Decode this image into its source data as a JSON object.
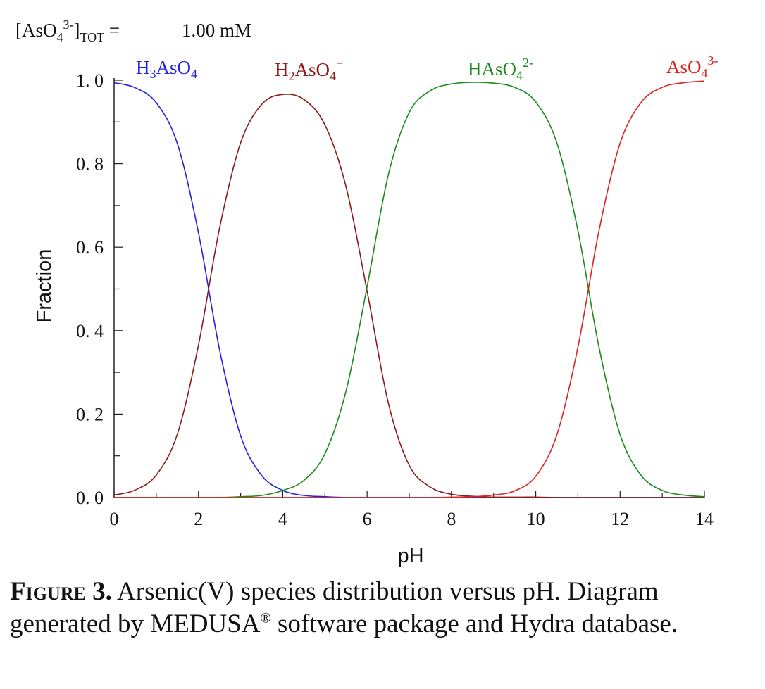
{
  "header": {
    "total_label_main": "[AsO",
    "total_label_sub4": "4",
    "total_label_sup": "3-",
    "total_label_close": "]",
    "total_label_sub": "TOT",
    "total_label_eq": " =",
    "total_value": "1.00 mM"
  },
  "chart_data": {
    "type": "line",
    "xlabel": "pH",
    "ylabel": "Fraction",
    "xlim": [
      0,
      14
    ],
    "ylim": [
      0,
      1.0
    ],
    "xticks": [
      0,
      2,
      4,
      6,
      8,
      10,
      12,
      14
    ],
    "xtick_labels": [
      "0",
      "2",
      "4",
      "6",
      "8",
      "10",
      "12",
      "14"
    ],
    "yticks": [
      0,
      0.2,
      0.4,
      0.6,
      0.8,
      1.0
    ],
    "ytick_labels": [
      "0. 0",
      "0. 2",
      "0. 4",
      "0. 6",
      "0. 8",
      "1. 0"
    ],
    "grid": false,
    "pKa": [
      2.24,
      6.76,
      11.6
    ],
    "x": [
      0,
      0.5,
      1,
      1.5,
      2,
      2.5,
      3,
      3.5,
      4,
      4.5,
      5,
      5.5,
      6,
      6.5,
      7,
      7.5,
      8,
      8.5,
      9,
      9.5,
      10,
      10.5,
      11,
      11.5,
      12,
      12.5,
      13,
      13.5,
      14
    ],
    "series": [
      {
        "label_main": "H",
        "label_sub1": "3",
        "label_mid": "AsO",
        "label_sub2": "4",
        "label_sup": "",
        "color": "#2222dd",
        "values": [
          0.994,
          0.982,
          0.946,
          0.848,
          0.635,
          0.355,
          0.148,
          0.053,
          0.017,
          0.005,
          0.002,
          0,
          0,
          0,
          0,
          0,
          0,
          0,
          0,
          0,
          0,
          0,
          0,
          0,
          0,
          0,
          0,
          0,
          0
        ]
      },
      {
        "label_main": "H",
        "label_sub1": "2",
        "label_mid": "AsO",
        "label_sub2": "4",
        "label_sup": "−",
        "color": "#8b1a1a",
        "values": [
          0.006,
          0.018,
          0.054,
          0.152,
          0.365,
          0.645,
          0.85,
          0.942,
          0.966,
          0.954,
          0.893,
          0.745,
          0.495,
          0.228,
          0.077,
          0.025,
          0.008,
          0.003,
          0.001,
          0.001,
          0.001,
          0,
          0,
          0,
          0,
          0,
          0,
          0,
          0
        ]
      },
      {
        "label_main": "HAsO",
        "label_sub1": "",
        "label_mid": "",
        "label_sub2": "4",
        "label_sup": "2-",
        "color": "#1a8a1a",
        "values": [
          0,
          0,
          0,
          0,
          0,
          0,
          0.002,
          0.005,
          0.017,
          0.041,
          0.105,
          0.255,
          0.505,
          0.772,
          0.923,
          0.975,
          0.991,
          0.995,
          0.993,
          0.983,
          0.948,
          0.85,
          0.64,
          0.36,
          0.151,
          0.053,
          0.017,
          0.006,
          0.002
        ]
      },
      {
        "label_main": "AsO",
        "label_sub1": "",
        "label_mid": "",
        "label_sub2": "4",
        "label_sup": "3-",
        "color": "#dd2222",
        "values": [
          0,
          0,
          0,
          0,
          0,
          0,
          0,
          0,
          0,
          0,
          0,
          0,
          0,
          0,
          0,
          0,
          0.001,
          0.002,
          0.006,
          0.016,
          0.051,
          0.15,
          0.36,
          0.64,
          0.849,
          0.947,
          0.983,
          0.994,
          0.998
        ]
      }
    ]
  },
  "caption": {
    "label": "Figure 3.",
    "text_before": " Arsenic(V) species distribution versus pH. Diagram generated by MEDUSA",
    "registered": "®",
    "text_after": " software package and Hydra database."
  }
}
